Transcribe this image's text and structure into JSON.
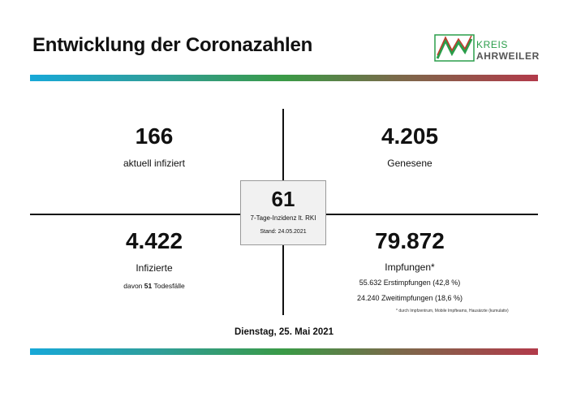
{
  "header": {
    "title": "Entwicklung der Coronazahlen"
  },
  "logo": {
    "line1": "KREIS",
    "line2": "AHRWEILER",
    "colors": {
      "green": "#2a9d4a",
      "red": "#c0392b"
    }
  },
  "quadrants": {
    "top_left": {
      "value": "166",
      "label": "aktuell infiziert"
    },
    "top_right": {
      "value": "4.205",
      "label": "Genesene"
    },
    "bottom_left": {
      "value": "4.422",
      "label": "Infizierte",
      "deaths_prefix": "davon",
      "deaths_count": "51",
      "deaths_suffix": "Todesfälle"
    },
    "bottom_right": {
      "value": "79.872",
      "label": "Impfungen*",
      "line1": "55.632 Erstimpfungen (42,8 %)",
      "line2": "24.240 Zweitimpfungen (18,6 %)"
    }
  },
  "incidence": {
    "value": "61",
    "label": "7-Tage-Inzidenz lt. RKI",
    "stand": "Stand: 24.05.2021"
  },
  "footnote": "* durch Impfzentrum, Mobile Impfteams, Hausärzte (kumulativ)",
  "date": "Dienstag, 25. Mai 2021",
  "colors": {
    "band_start": "#17a8d8",
    "band_mid": "#3a9a46",
    "band_end": "#b23a4a",
    "box_bg": "#f1f1f1"
  }
}
